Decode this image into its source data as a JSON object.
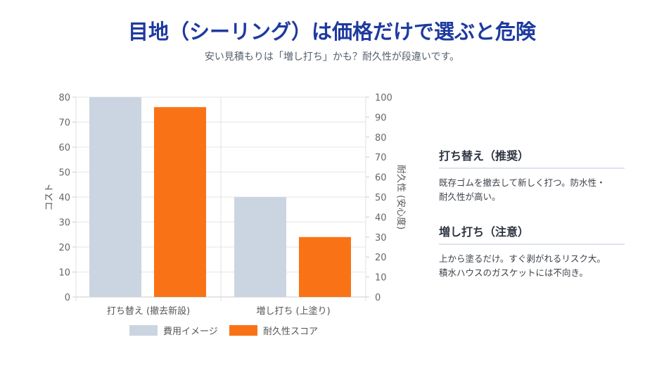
{
  "header": {
    "title": "目地（シーリング）は価格だけで選ぶと危険",
    "subtitle": "安い見積もりは「増し打ち」かも？耐久性が段違いです。"
  },
  "chart_data": {
    "type": "bar",
    "categories": [
      "打ち替え (撤去新設)",
      "増し打ち (上塗り)"
    ],
    "series": [
      {
        "name": "費用イメージ",
        "values": [
          80,
          40
        ],
        "axis": "left",
        "color": "#cbd5e1"
      },
      {
        "name": "耐久性スコア",
        "values": [
          95,
          30
        ],
        "axis": "right",
        "color": "#f97316"
      }
    ],
    "ylabel": "コスト",
    "ylim": [
      0,
      80
    ],
    "yticks": [
      0,
      10,
      20,
      30,
      40,
      50,
      60,
      70,
      80
    ],
    "y2label": "耐久性 (安心度)",
    "y2lim": [
      0,
      100
    ],
    "y2ticks": [
      0,
      10,
      20,
      30,
      40,
      50,
      60,
      70,
      80,
      90,
      100
    ],
    "grid": true,
    "legend": "bottom"
  },
  "side": [
    {
      "heading": "打ち替え（推奨）",
      "text": "既存ゴムを撤去して新しく打つ。防水性・耐久性が高い。"
    },
    {
      "heading": "増し打ち（注意）",
      "text": "上から塗るだけ。すぐ剥がれるリスク大。積水ハウスのガスケットには不向き。"
    }
  ]
}
